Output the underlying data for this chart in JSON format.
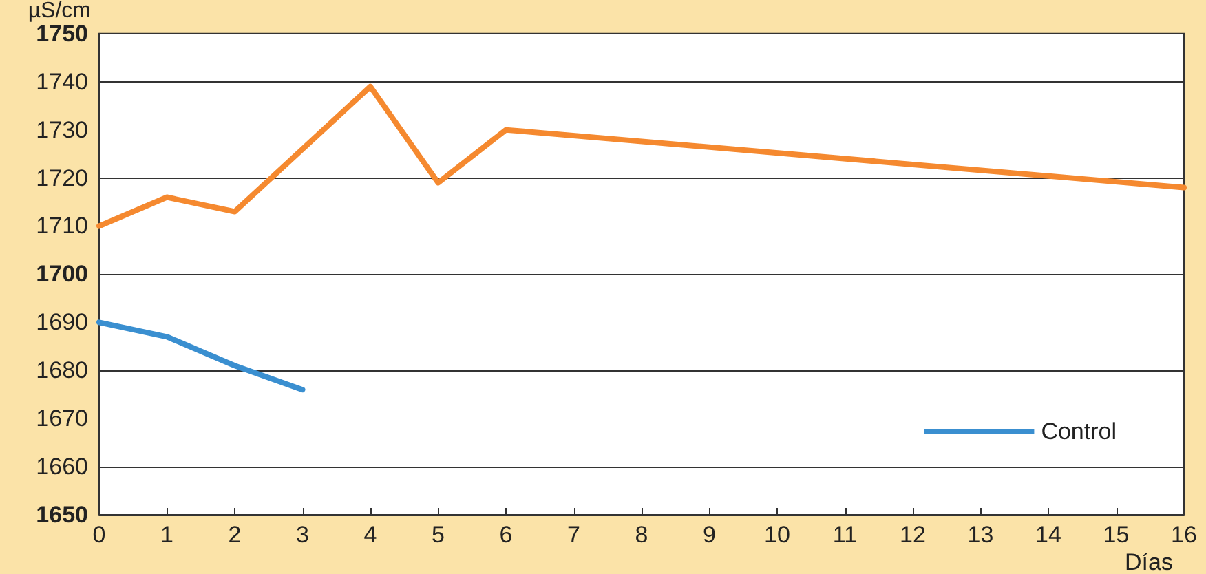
{
  "chart_data": {
    "type": "line",
    "ylabel": "µS/cm",
    "xlabel": "Días",
    "xlim": [
      0,
      16
    ],
    "xticks": [
      0,
      1,
      2,
      3,
      4,
      5,
      6,
      7,
      8,
      9,
      10,
      11,
      12,
      13,
      14,
      15,
      16
    ],
    "ylim": [
      1650,
      1750
    ],
    "yticks": [
      1650,
      1660,
      1670,
      1680,
      1690,
      1700,
      1710,
      1720,
      1730,
      1740,
      1750
    ],
    "grid": "y",
    "legend": "bottom right",
    "marker": "none",
    "line_style": "solid",
    "series": [
      {
        "name": "Control",
        "color": "#3a8fd0",
        "x": [
          0,
          1,
          2,
          3
        ],
        "values": [
          1690,
          1687,
          1681,
          1676
        ]
      },
      {
        "color": "#f5892f",
        "x": [
          0,
          1,
          2,
          4,
          5,
          6,
          16
        ],
        "values": [
          1710,
          1716,
          1713,
          1739,
          1719,
          1730,
          1718
        ]
      }
    ]
  }
}
